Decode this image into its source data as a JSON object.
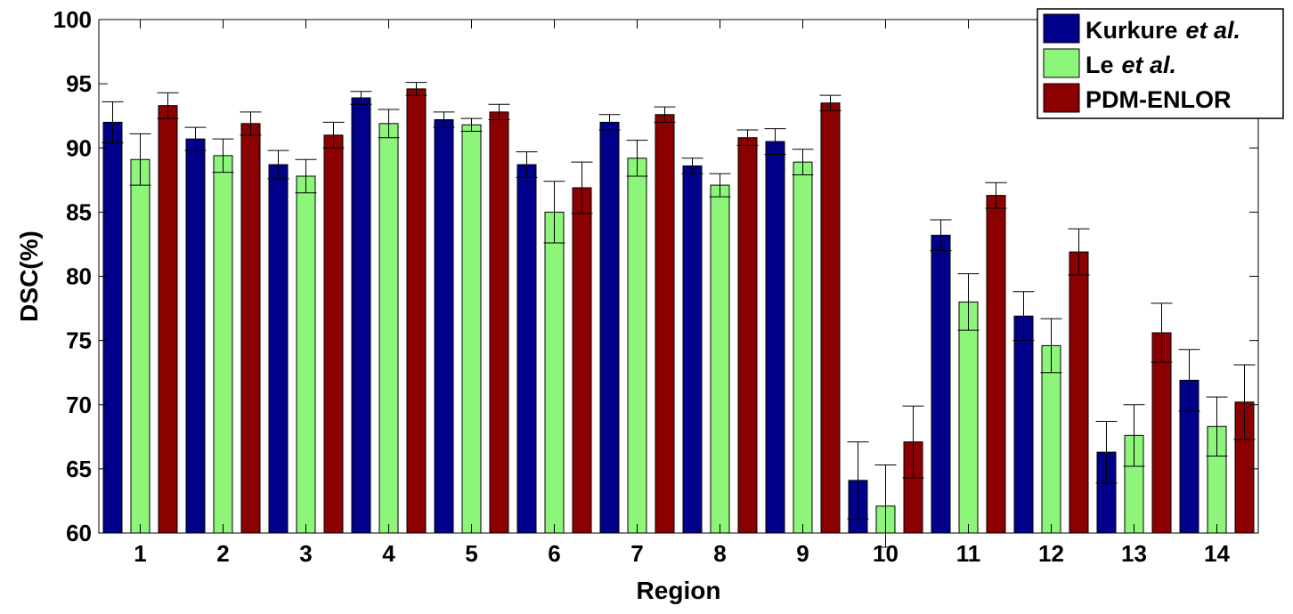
{
  "chart_data": {
    "type": "bar",
    "xlabel": "Region",
    "ylabel": "DSC(%)",
    "ylim": [
      60,
      100
    ],
    "yticks": [
      60,
      65,
      70,
      75,
      80,
      85,
      90,
      95,
      100
    ],
    "categories": [
      "1",
      "2",
      "3",
      "4",
      "5",
      "6",
      "7",
      "8",
      "9",
      "10",
      "11",
      "12",
      "13",
      "14"
    ],
    "legend_position": "top-right",
    "grid": false,
    "series": [
      {
        "name": "Kurkure et al.",
        "legend_main": "Kurkure",
        "legend_italic": "et al.",
        "color": "#00008b",
        "values": [
          92.0,
          90.7,
          88.7,
          93.9,
          92.2,
          88.7,
          92.0,
          88.6,
          90.5,
          64.1,
          83.2,
          76.9,
          66.3,
          71.9
        ],
        "errors": [
          1.6,
          0.9,
          1.1,
          0.5,
          0.6,
          1.0,
          0.6,
          0.6,
          1.0,
          3.0,
          1.2,
          1.9,
          2.4,
          2.4
        ]
      },
      {
        "name": "Le et al.",
        "legend_main": "Le",
        "legend_italic": "et al.",
        "color": "#8cf57a",
        "values": [
          89.1,
          89.4,
          87.8,
          91.9,
          91.8,
          85.0,
          89.2,
          87.1,
          88.9,
          62.1,
          78.0,
          74.6,
          67.6,
          68.3
        ],
        "errors": [
          2.0,
          1.3,
          1.3,
          1.1,
          0.5,
          2.4,
          1.4,
          0.9,
          1.0,
          3.2,
          2.2,
          2.1,
          2.4,
          2.3
        ]
      },
      {
        "name": "PDM-ENLOR",
        "legend_main": "PDM-ENLOR",
        "legend_italic": "",
        "color": "#8b0000",
        "values": [
          93.3,
          91.9,
          91.0,
          94.6,
          92.8,
          86.9,
          92.6,
          90.8,
          93.5,
          67.1,
          86.3,
          81.9,
          75.6,
          70.2
        ],
        "errors": [
          1.0,
          0.9,
          1.0,
          0.5,
          0.6,
          2.0,
          0.6,
          0.6,
          0.6,
          2.8,
          1.0,
          1.8,
          2.3,
          2.9
        ]
      }
    ]
  }
}
